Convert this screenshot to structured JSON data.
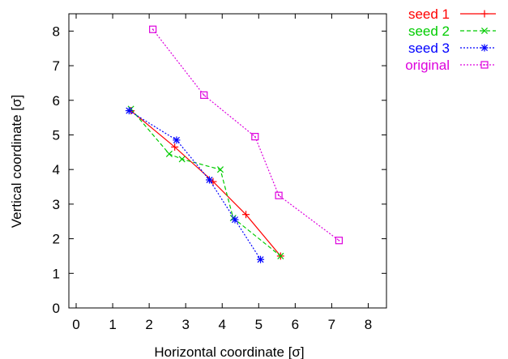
{
  "chart_data": {
    "type": "line",
    "title": "",
    "xlabel": "Horizontal coordinate [σ]",
    "ylabel": "Vertical coordinate [σ]",
    "xlim": [
      -0.2,
      8.5
    ],
    "ylim": [
      0,
      8.5
    ],
    "x_ticks": [
      "0",
      "1",
      "2",
      "3",
      "4",
      "5",
      "6",
      "7",
      "8"
    ],
    "y_ticks": [
      "0",
      "1",
      "2",
      "3",
      "4",
      "5",
      "6",
      "7",
      "8"
    ],
    "grid": false,
    "legend_position": "top-right-outside",
    "series": [
      {
        "name": "seed 1",
        "color": "#ff0000",
        "dash": "solid",
        "marker": "plus",
        "points": [
          [
            1.5,
            5.7
          ],
          [
            2.7,
            4.65
          ],
          [
            3.75,
            3.65
          ],
          [
            4.65,
            2.7
          ],
          [
            5.6,
            1.5
          ]
        ]
      },
      {
        "name": "seed 2",
        "color": "#00cc00",
        "dash": "dashed",
        "marker": "cross",
        "points": [
          [
            1.5,
            5.75
          ],
          [
            2.55,
            4.45
          ],
          [
            2.9,
            4.3
          ],
          [
            3.95,
            4.0
          ],
          [
            4.3,
            2.6
          ],
          [
            5.6,
            1.5
          ]
        ]
      },
      {
        "name": "seed 3",
        "color": "#0000ff",
        "dash": "dotted",
        "marker": "star",
        "points": [
          [
            1.45,
            5.7
          ],
          [
            2.75,
            4.85
          ],
          [
            3.65,
            3.7
          ],
          [
            4.35,
            2.55
          ],
          [
            5.05,
            1.4
          ]
        ]
      },
      {
        "name": "original",
        "color": "#dd00dd",
        "dash": "dotted",
        "marker": "square",
        "points": [
          [
            2.1,
            8.05
          ],
          [
            3.5,
            6.15
          ],
          [
            4.9,
            4.95
          ],
          [
            5.55,
            3.25
          ],
          [
            7.2,
            1.95
          ]
        ]
      }
    ]
  }
}
